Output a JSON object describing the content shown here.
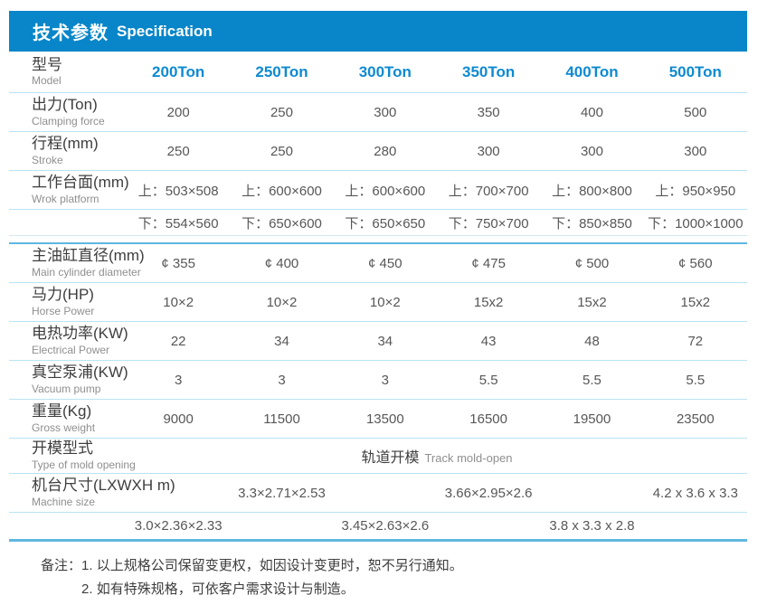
{
  "header": {
    "title_zh": "技术参数",
    "title_en": "Specification"
  },
  "colors": {
    "primary": "#0886c9",
    "model_blue": "#0d8ad2",
    "divider_light": "#b9e3f4",
    "divider_faint": "#d3e7f0",
    "divider_medium": "#5fb7e0",
    "label_dark": "#3e3e3e",
    "label_gray": "#8f8f8f",
    "value_gray": "#575757"
  },
  "table": {
    "rows": [
      {
        "name": "row-model",
        "cls": "model",
        "label_zh": "型号",
        "label_en": "Model",
        "values": [
          "200Ton",
          "250Ton",
          "300Ton",
          "350Ton",
          "400Ton",
          "500Ton"
        ]
      },
      {
        "name": "row-clamping-force",
        "cls": "",
        "label_zh": "出力(Ton)",
        "label_en": "Clamping force",
        "values": [
          "200",
          "250",
          "300",
          "350",
          "400",
          "500"
        ]
      },
      {
        "name": "row-stroke",
        "cls": "",
        "label_zh": "行程(mm)",
        "label_en": "Stroke",
        "values": [
          "250",
          "250",
          "280",
          "300",
          "300",
          "300"
        ]
      },
      {
        "name": "row-work-platform-upper",
        "cls": "",
        "label_zh": "工作台面(mm)",
        "label_en": "Wrok platform",
        "values": [
          "上：503×508",
          "上：600×600",
          "上：600×600",
          "上：700×700",
          "上：800×800",
          "上：950×950"
        ]
      },
      {
        "name": "row-work-platform-lower",
        "cls": "platform-lower",
        "gap_after": true,
        "label_zh": "",
        "label_en": "",
        "values": [
          "下：554×560",
          "下：650×600",
          "下：650×650",
          "下：750×700",
          "下：850×850",
          "下：1000×1000"
        ]
      },
      {
        "name": "row-main-cylinder",
        "cls": "",
        "label_zh": "主油缸直径(mm)",
        "label_en": "Main cylinder diameter",
        "values": [
          "¢ 355",
          "¢ 400",
          "¢ 450",
          "¢ 475",
          "¢ 500",
          "¢ 560"
        ]
      },
      {
        "name": "row-horse-power",
        "cls": "",
        "label_zh": "马力(HP)",
        "label_en": "Horse Power",
        "values": [
          "10×2",
          "10×2",
          "10×2",
          "15x2",
          "15x2",
          "15x2"
        ]
      },
      {
        "name": "row-electrical-power",
        "cls": "",
        "label_zh": "电热功率(KW)",
        "label_en": "Electrical Power",
        "values": [
          "22",
          "34",
          "34",
          "43",
          "48",
          "72"
        ]
      },
      {
        "name": "row-vacuum-pump",
        "cls": "",
        "label_zh": "真空泵浦(KW)",
        "label_en": "Vacuum pump",
        "values": [
          "3",
          "3",
          "3",
          "5.5",
          "5.5",
          "5.5"
        ]
      },
      {
        "name": "row-gross-weight",
        "cls": "",
        "label_zh": "重量(Kg)",
        "label_en": "Gross weight",
        "values": [
          "9000",
          "11500",
          "13500",
          "16500",
          "19500",
          "23500"
        ]
      },
      {
        "name": "row-mold-opening",
        "cls": "mold",
        "label_zh": "开模型式",
        "label_en": "Type of mold opening",
        "value_zh": "轨道开模",
        "value_en": "Track mold-open"
      },
      {
        "name": "row-machine-size-a",
        "cls": "size-a",
        "label_zh": "机台尺寸(LXWXH m)",
        "label_en": "Machine size",
        "values": [
          "",
          "3.3×2.71×2.53",
          "",
          "3.66×2.95×2.6",
          "",
          "4.2 x 3.6 x 3.3"
        ]
      },
      {
        "name": "row-machine-size-b",
        "cls": "size-b",
        "label_zh": "",
        "label_en": "",
        "values": [
          "3.0×2.36×2.33",
          "",
          "3.45×2.63×2.6",
          "",
          "3.8 x 3.3 x 2.8",
          ""
        ]
      }
    ]
  },
  "remarks": {
    "label": "备注：",
    "line1": "1. 以上规格公司保留变更权，如因设计变更时，恕不另行通知。",
    "line2": "2. 如有特殊规格，可依客户需求设计与制造。"
  }
}
